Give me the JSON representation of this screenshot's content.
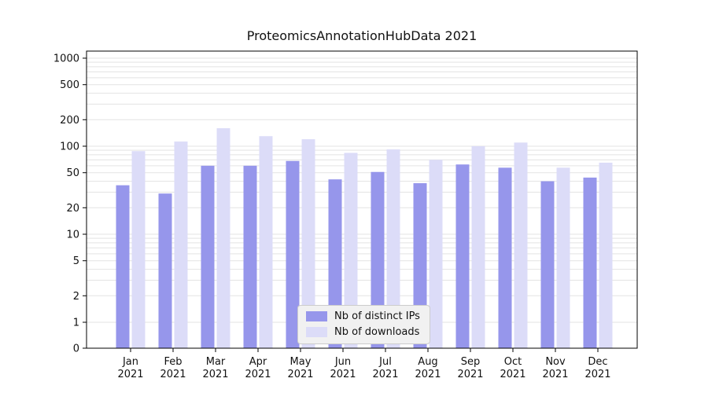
{
  "chart_data": {
    "type": "bar",
    "title": "ProteomicsAnnotationHubData 2021",
    "categories": [
      "Jan",
      "Feb",
      "Mar",
      "Apr",
      "May",
      "Jun",
      "Jul",
      "Aug",
      "Sep",
      "Oct",
      "Nov",
      "Dec"
    ],
    "year_label": "2021",
    "series": [
      {
        "name": "Nb of distinct IPs",
        "color": "#9696eb",
        "values": [
          36,
          29,
          60,
          60,
          68,
          42,
          51,
          38,
          62,
          57,
          40,
          44
        ]
      },
      {
        "name": "Nb of downloads",
        "color": "#dcdcf8",
        "values": [
          88,
          113,
          160,
          130,
          120,
          84,
          92,
          70,
          100,
          110,
          57,
          65
        ]
      }
    ],
    "y_ticks": [
      0,
      1,
      2,
      5,
      10,
      20,
      50,
      100,
      200,
      500,
      1000
    ],
    "y_scale": "symlog",
    "ylim": [
      0,
      1000
    ],
    "grid": true,
    "grid_color": "#e3e3e3",
    "axis_color": "#000000",
    "legend_position": "bottom-center"
  }
}
